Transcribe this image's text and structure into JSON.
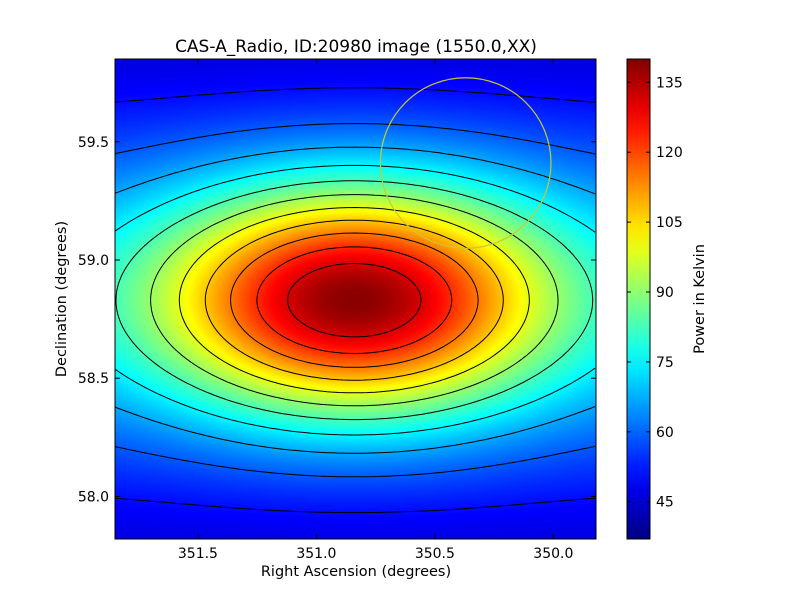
{
  "chart_data": {
    "type": "heatmap",
    "title": "CAS-A_Radio, ID:20980 image (1550.0,XX)",
    "xlabel": "Right Ascension (degrees)",
    "ylabel": "Declination (degrees)",
    "colorbar_label": "Power in Kelvin",
    "colormap": "jet",
    "xlim": [
      351.85,
      349.82
    ],
    "ylim": [
      57.82,
      59.85
    ],
    "x_inverted": true,
    "x_ticks": [
      351.5,
      351.0,
      350.5,
      350.0
    ],
    "x_tick_labels": [
      "351.5",
      "351.0",
      "350.5",
      "350.0"
    ],
    "y_ticks": [
      58.0,
      58.5,
      59.0,
      59.5
    ],
    "y_tick_labels": [
      "58.0",
      "58.5",
      "59.0",
      "59.5"
    ],
    "color_range": [
      37,
      140
    ],
    "colorbar_ticks": [
      45,
      60,
      75,
      90,
      105,
      120,
      135
    ],
    "colorbar_tick_labels": [
      "45",
      "60",
      "75",
      "90",
      "105",
      "120",
      "135"
    ],
    "peak": {
      "ra": 350.84,
      "dec": 58.83,
      "value": 139
    },
    "contour_color": "#000000",
    "annotation_circle": {
      "ra": 350.37,
      "dec": 59.41,
      "radius_deg": 0.36,
      "color": "#c8c832"
    }
  }
}
